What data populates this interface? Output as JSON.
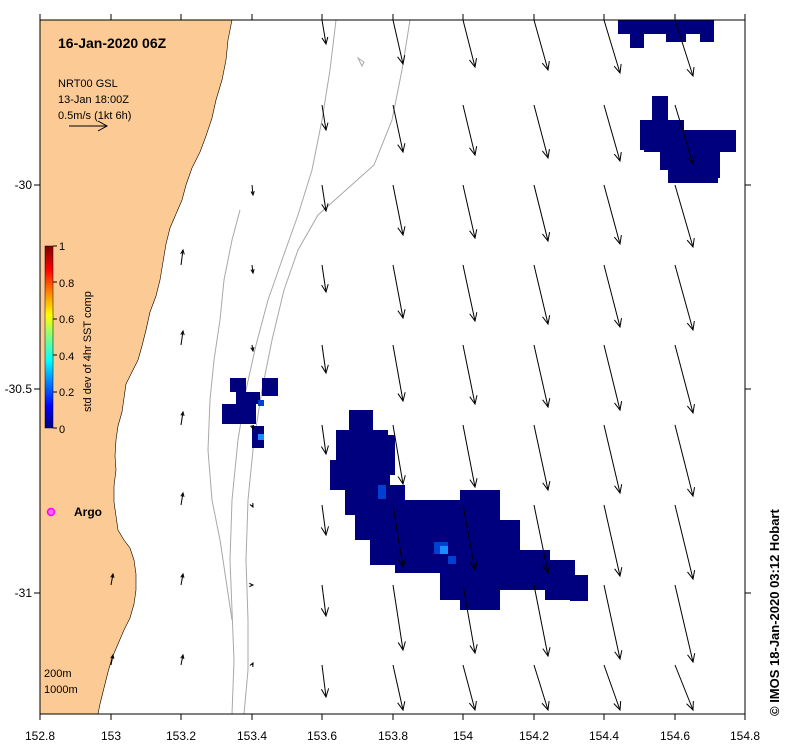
{
  "title": "16-Jan-2020 06Z",
  "source": {
    "line1": "NRT00 GSL",
    "line2": "13-Jan 18:00Z",
    "line3": "0.5m/s (1kt 6h)"
  },
  "colorbar": {
    "label": "std dev of 4hr SST comp",
    "ticks": [
      "0",
      "0.2",
      "0.4",
      "0.6",
      "0.8",
      "1"
    ],
    "colors": [
      "#00007f",
      "#0000ff",
      "#007fff",
      "#00ffff",
      "#7fff7f",
      "#ffff00",
      "#ff7f00",
      "#ff0000",
      "#7f0000"
    ]
  },
  "axes": {
    "x_ticks": [
      "152.8",
      "153",
      "153.2",
      "153.4",
      "153.6",
      "153.8",
      "154",
      "154.2",
      "154.4",
      "154.6",
      "154.8"
    ],
    "y_ticks": [
      "-30",
      "-30.5",
      "-31"
    ]
  },
  "argo": {
    "label": "Argo",
    "color": "#ff00ff"
  },
  "contour_legend": {
    "line1": "200m",
    "line2": "1000m"
  },
  "credit": "© IMOS 18-Jan-2020 03:12 Hobart",
  "colors": {
    "land": "#fccb95",
    "ocean": "#ffffff",
    "anomaly_dark": "#00007f",
    "anomaly_mid": "#0040d0",
    "anomaly_light": "#1a8cff",
    "contour": "#a8a8a8"
  }
}
